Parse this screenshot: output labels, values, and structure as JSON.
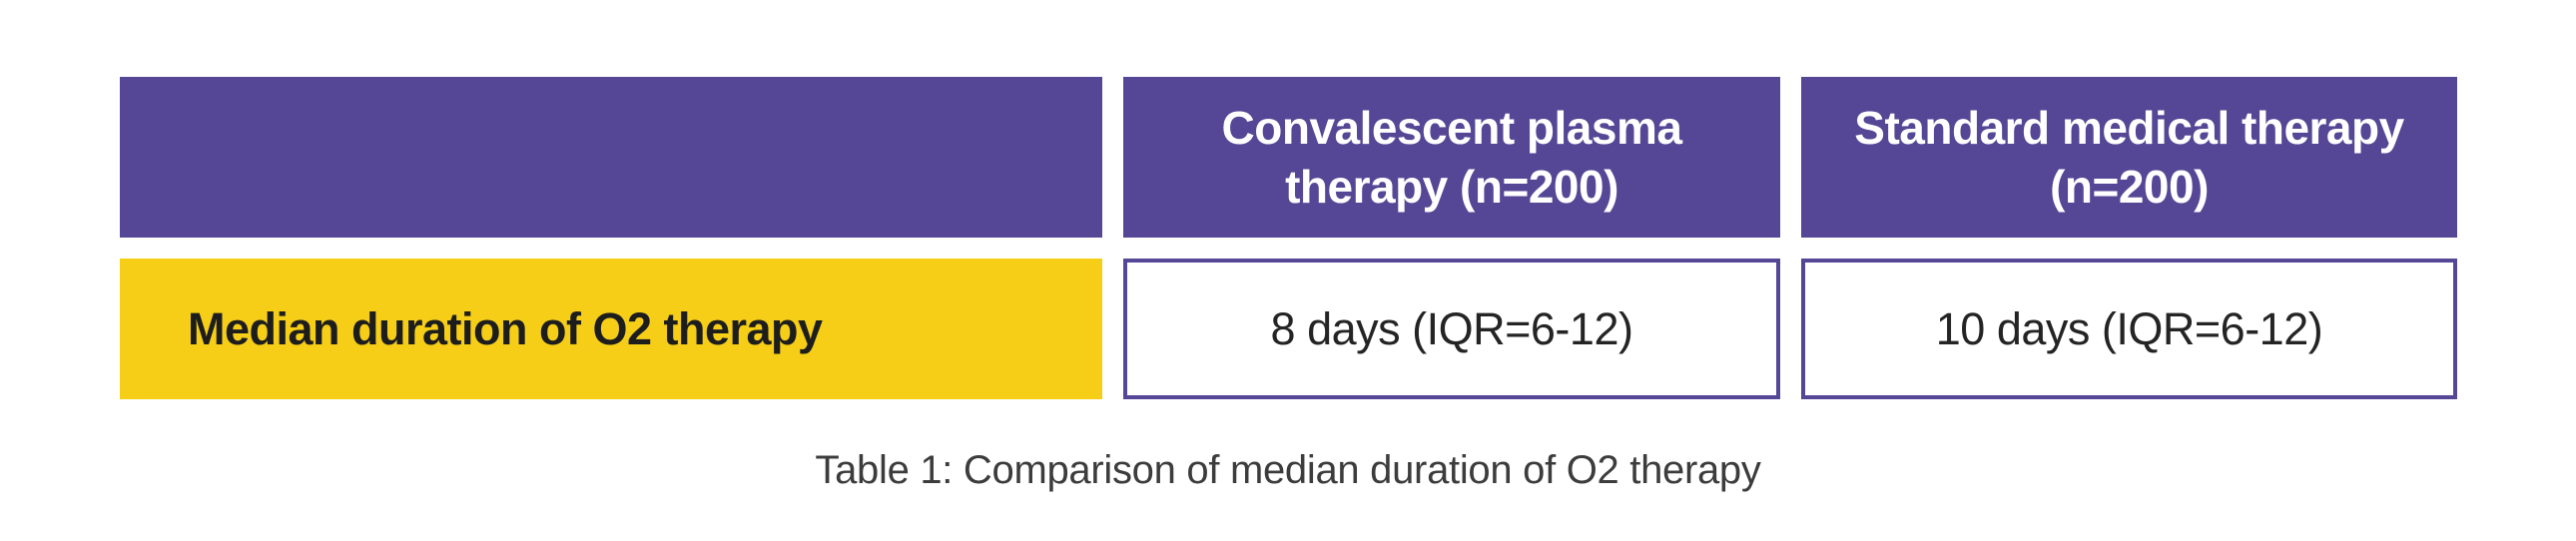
{
  "colors": {
    "header_background": "#554796",
    "label_background": "#F6CE17",
    "header_text": "#ffffff",
    "body_text": "#242424",
    "label_text": "#1d1d1d",
    "value_cell_border": "#554796",
    "caption_text": "#3c3c3c",
    "page_background": "#ffffff"
  },
  "table": {
    "columns": [
      {
        "header": ""
      },
      {
        "header": "Convalescent plasma therapy (n=200)"
      },
      {
        "header": "Standard medical therapy (n=200)"
      }
    ],
    "rows": [
      {
        "label": "Median duration of O2 therapy",
        "values": [
          "8 days (IQR=6-12)",
          "10 days (IQR=6-12)"
        ]
      }
    ]
  },
  "caption": "Table 1: Comparison of median duration of O2 therapy",
  "chart_data": {
    "type": "table",
    "title": "Table 1: Comparison of median duration of O2 therapy",
    "columns": [
      "",
      "Convalescent plasma therapy (n=200)",
      "Standard medical therapy (n=200)"
    ],
    "rows": [
      [
        "Median duration of O2 therapy",
        "8 days (IQR=6-12)",
        "10 days (IQR=6-12)"
      ]
    ],
    "values": {
      "convalescent_plasma": {
        "n": 200,
        "median_o2_days": 8,
        "iqr": [
          6,
          12
        ]
      },
      "standard_medical": {
        "n": 200,
        "median_o2_days": 10,
        "iqr": [
          6,
          12
        ]
      }
    },
    "layout": {
      "header_fill": "#554796",
      "label_fill": "#F6CE17",
      "caption_position": "bottom-center"
    }
  }
}
